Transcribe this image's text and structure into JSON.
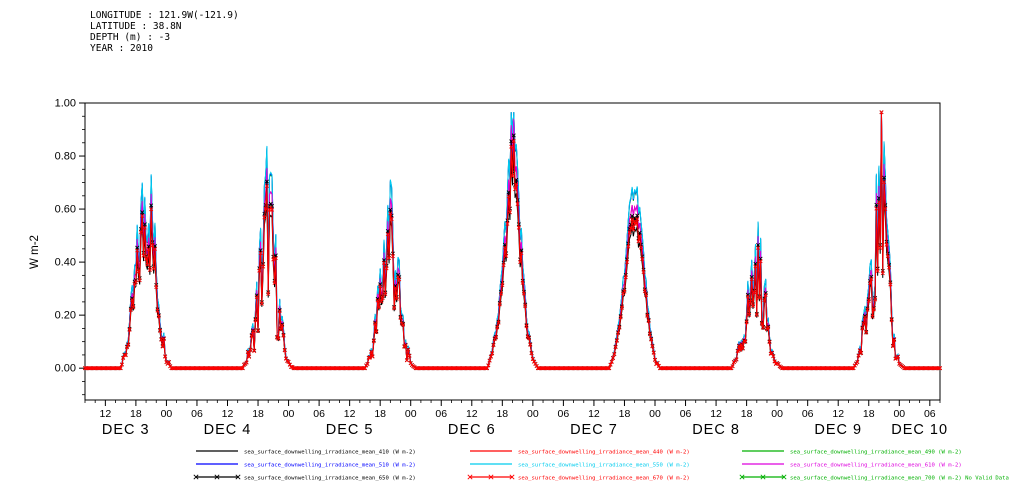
{
  "header": {
    "lines": [
      "LONGITUDE : 121.9W(-121.9)",
      "LATITUDE : 38.8N",
      "DEPTH (m) : -3",
      "YEAR : 2010"
    ]
  },
  "chart_data": {
    "type": "line",
    "title": "",
    "ylabel": "W m-2",
    "ylim": [
      -0.12,
      1.0
    ],
    "yticks": [
      0.0,
      0.2,
      0.4,
      0.6,
      0.8,
      1.0
    ],
    "ytick_labels": [
      "0.00",
      "0.20",
      "0.40",
      "0.60",
      "0.80",
      "1.00"
    ],
    "x_axis": {
      "description": "hours since DEC 3 2010 00:00",
      "start_hour": 8,
      "end_hour": 176,
      "major_tick_hours": 6,
      "minor_tick_hours": 2,
      "tick_labels_pattern": [
        "12",
        "18",
        "00",
        "06"
      ],
      "day_labels": [
        "DEC 3",
        "DEC 4",
        "DEC 5",
        "DEC 6",
        "DEC 7",
        "DEC 8",
        "DEC 9",
        "DEC 10"
      ]
    },
    "envelope_hours": [
      14,
      15,
      16,
      17,
      18,
      19,
      20,
      21,
      22,
      23,
      24,
      25,
      26
    ],
    "envelope_by_day": [
      [
        0,
        0,
        0.07,
        0.2,
        0.37,
        0.55,
        0.67,
        0.6,
        0.38,
        0.17,
        0.05,
        0,
        0
      ],
      [
        0,
        0,
        0.05,
        0.13,
        0.28,
        0.5,
        0.63,
        0.45,
        0.25,
        0.1,
        0.02,
        0,
        0
      ],
      [
        0,
        0,
        0.05,
        0.15,
        0.3,
        0.48,
        0.6,
        0.44,
        0.22,
        0.09,
        0.02,
        0,
        0
      ],
      [
        0,
        0,
        0.06,
        0.18,
        0.36,
        0.6,
        0.95,
        0.66,
        0.4,
        0.16,
        0.04,
        0,
        0
      ],
      [
        0,
        0,
        0.06,
        0.19,
        0.38,
        0.58,
        0.72,
        0.6,
        0.37,
        0.15,
        0.04,
        0,
        0
      ],
      [
        0,
        0,
        0.04,
        0.11,
        0.22,
        0.33,
        0.42,
        0.34,
        0.2,
        0.08,
        0.02,
        0,
        0
      ],
      [
        0,
        0,
        0.05,
        0.15,
        0.32,
        0.55,
        0.95,
        0.62,
        0.3,
        0.1,
        0.02,
        0,
        0
      ]
    ],
    "noise_by_day": [
      0.35,
      0.55,
      0.55,
      0.2,
      0.08,
      0.45,
      0.55
    ],
    "sample_step_hours": 0.25,
    "value_clamp_max": 0.965,
    "series": [
      {
        "id": "410",
        "label": "sea_surface_downwelling_irradiance_mean_410 (W m-2)",
        "color": "#000000",
        "scale": 0.78,
        "markers": false,
        "no_data": false
      },
      {
        "id": "440",
        "label": "sea_surface_downwelling_irradiance_mean_440 (W m-2)",
        "color": "#ff0000",
        "scale": 0.9,
        "markers": false,
        "no_data": false
      },
      {
        "id": "490",
        "label": "sea_surface_downwelling_irradiance_mean_490 (W m-2)",
        "color": "#00b000",
        "scale": 0.99,
        "markers": false,
        "no_data": false
      },
      {
        "id": "510",
        "label": "sea_surface_downwelling_irradiance_mean_510 (W m-2)",
        "color": "#0000ff",
        "scale": 0.995,
        "markers": false,
        "no_data": false
      },
      {
        "id": "550",
        "label": "sea_surface_downwelling_irradiance_mean_550 (W m-2)",
        "color": "#00ccee",
        "scale": 1.0,
        "markers": false,
        "no_data": false
      },
      {
        "id": "610",
        "label": "sea_surface_downwelling_irradiance_mean_610 (W m-2)",
        "color": "#dd00dd",
        "scale": 0.9,
        "markers": false,
        "no_data": false
      },
      {
        "id": "650",
        "label": "sea_surface_downwelling_irradiance_mean_650 (W m-2)",
        "color": "#000000",
        "scale": 0.84,
        "markers": true,
        "no_data": false
      },
      {
        "id": "670",
        "label": "sea_surface_downwelling_irradiance_mean_670 (W m-2)",
        "color": "#ff0000",
        "scale": 0.82,
        "markers": true,
        "no_data": false
      },
      {
        "id": "700",
        "label": "sea_surface_downwelling_irradiance_mean_700 (W m-2) No Valid Data",
        "color": "#00b000",
        "scale": 0.78,
        "markers": true,
        "no_data": true
      }
    ]
  }
}
